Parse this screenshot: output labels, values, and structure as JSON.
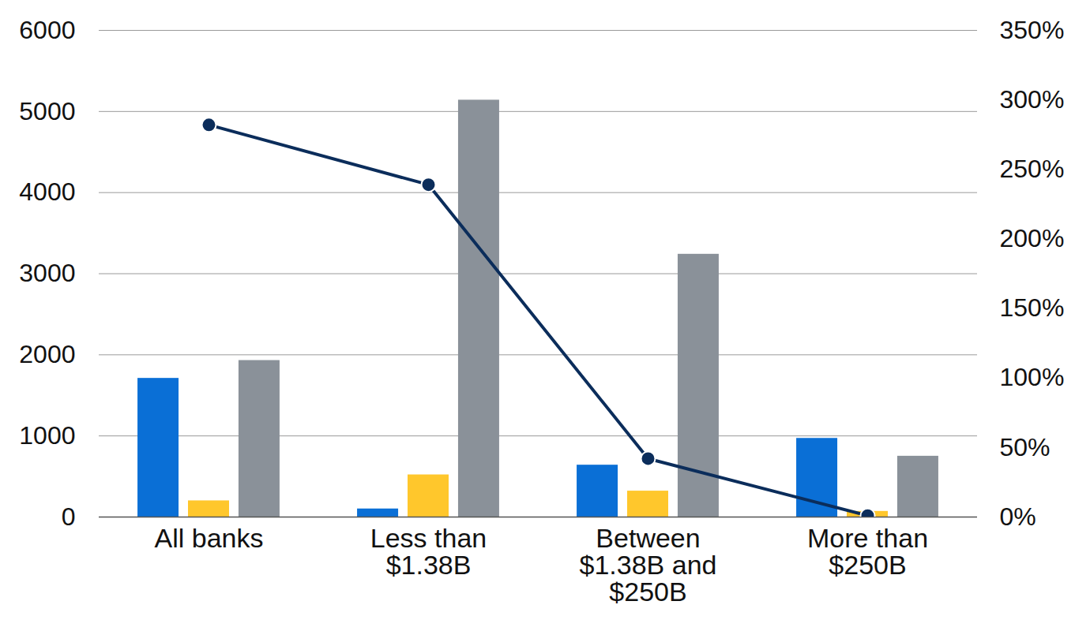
{
  "chart_data": {
    "type": "bar",
    "categories": [
      "All banks",
      "Less than $1.38B",
      "Between $1.38B and $250B",
      "More than $250B"
    ],
    "series": [
      {
        "color": "#0a6fd6",
        "values": [
          1710,
          100,
          640,
          970
        ]
      },
      {
        "color": "#ffc72c",
        "values": [
          200,
          520,
          320,
          70
        ]
      },
      {
        "color": "#8a9199",
        "values": [
          1930,
          5140,
          3240,
          750
        ]
      },
      {
        "type": "line",
        "axis": "y2",
        "color": "#0b2d5b",
        "marker": "circle",
        "values": [
          282,
          239,
          42,
          1
        ]
      }
    ],
    "ylim": [
      0,
      6000
    ],
    "yticks": [
      0,
      1000,
      2000,
      3000,
      4000,
      5000,
      6000
    ],
    "y2lim": [
      0,
      350
    ],
    "y2ticks": [
      {
        "value": 0,
        "label": "0%"
      },
      {
        "value": 50,
        "label": "50%"
      },
      {
        "value": 100,
        "label": "100%"
      },
      {
        "value": 150,
        "label": "150%"
      },
      {
        "value": 200,
        "label": "200%"
      },
      {
        "value": 250,
        "label": "250%"
      },
      {
        "value": 300,
        "label": "300%"
      },
      {
        "value": 350,
        "label": "350%"
      }
    ],
    "grid": true
  }
}
